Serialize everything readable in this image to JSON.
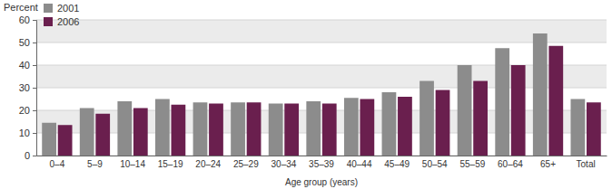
{
  "chart_data": {
    "type": "bar",
    "y_label": "Percent",
    "x_label": "Age group (years)",
    "categories": [
      "0–4",
      "5–9",
      "10–14",
      "15–19",
      "20–24",
      "25–29",
      "30–34",
      "35–39",
      "40–44",
      "45–49",
      "50–54",
      "55–59",
      "60–64",
      "65+",
      "Total"
    ],
    "series": [
      {
        "name": "2001",
        "color": "#8c8c8c",
        "values": [
          14.5,
          21,
          24,
          25,
          23.5,
          23.5,
          23,
          24,
          25.5,
          28,
          33,
          40,
          47.5,
          54,
          25
        ]
      },
      {
        "name": "2006",
        "color": "#6a1f4e",
        "values": [
          13.5,
          18.5,
          21,
          22.5,
          23,
          23.5,
          23,
          23,
          25,
          26,
          29,
          33,
          40,
          48.5,
          23.5
        ]
      }
    ],
    "ylim": [
      0,
      60
    ],
    "yticks": [
      0,
      10,
      20,
      30,
      40,
      50,
      60
    ],
    "grid": true,
    "legend": "top-left"
  }
}
